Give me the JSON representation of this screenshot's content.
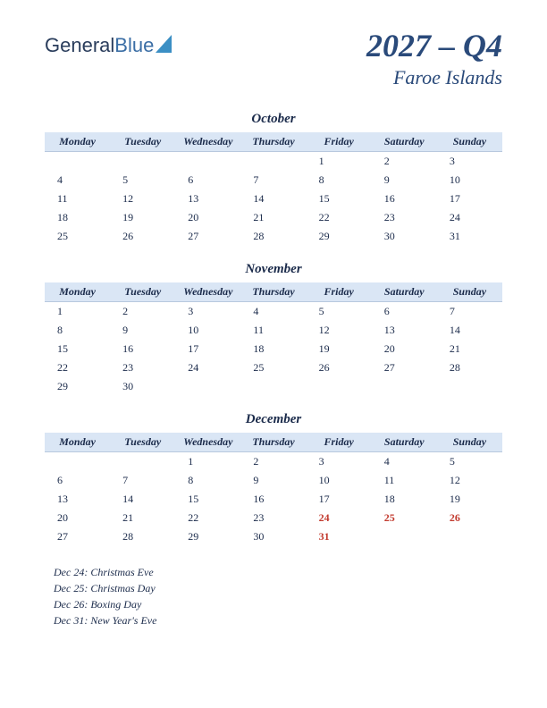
{
  "logo": {
    "part1": "General",
    "part2": "Blue"
  },
  "title": {
    "quarter": "2027 – Q4",
    "region": "Faroe Islands"
  },
  "weekdays": [
    "Monday",
    "Tuesday",
    "Wednesday",
    "Thursday",
    "Friday",
    "Saturday",
    "Sunday"
  ],
  "months": [
    {
      "name": "October",
      "weeks": [
        [
          "",
          "",
          "",
          "",
          "1",
          "2",
          "3"
        ],
        [
          "4",
          "5",
          "6",
          "7",
          "8",
          "9",
          "10"
        ],
        [
          "11",
          "12",
          "13",
          "14",
          "15",
          "16",
          "17"
        ],
        [
          "18",
          "19",
          "20",
          "21",
          "22",
          "23",
          "24"
        ],
        [
          "25",
          "26",
          "27",
          "28",
          "29",
          "30",
          "31"
        ]
      ],
      "holidays": []
    },
    {
      "name": "November",
      "weeks": [
        [
          "1",
          "2",
          "3",
          "4",
          "5",
          "6",
          "7"
        ],
        [
          "8",
          "9",
          "10",
          "11",
          "12",
          "13",
          "14"
        ],
        [
          "15",
          "16",
          "17",
          "18",
          "19",
          "20",
          "21"
        ],
        [
          "22",
          "23",
          "24",
          "25",
          "26",
          "27",
          "28"
        ],
        [
          "29",
          "30",
          "",
          "",
          "",
          "",
          ""
        ]
      ],
      "holidays": []
    },
    {
      "name": "December",
      "weeks": [
        [
          "",
          "",
          "1",
          "2",
          "3",
          "4",
          "5"
        ],
        [
          "6",
          "7",
          "8",
          "9",
          "10",
          "11",
          "12"
        ],
        [
          "13",
          "14",
          "15",
          "16",
          "17",
          "18",
          "19"
        ],
        [
          "20",
          "21",
          "22",
          "23",
          "24",
          "25",
          "26"
        ],
        [
          "27",
          "28",
          "29",
          "30",
          "31",
          "",
          ""
        ]
      ],
      "holidays": [
        "24",
        "25",
        "26",
        "31"
      ]
    }
  ],
  "holiday_list": [
    "Dec 24: Christmas Eve",
    "Dec 25: Christmas Day",
    "Dec 26: Boxing Day",
    "Dec 31: New Year's Eve"
  ],
  "colors": {
    "header_bg": "#dae6f5",
    "text": "#1a2a4a",
    "title": "#2a4a7a",
    "holiday": "#c23a2e"
  }
}
